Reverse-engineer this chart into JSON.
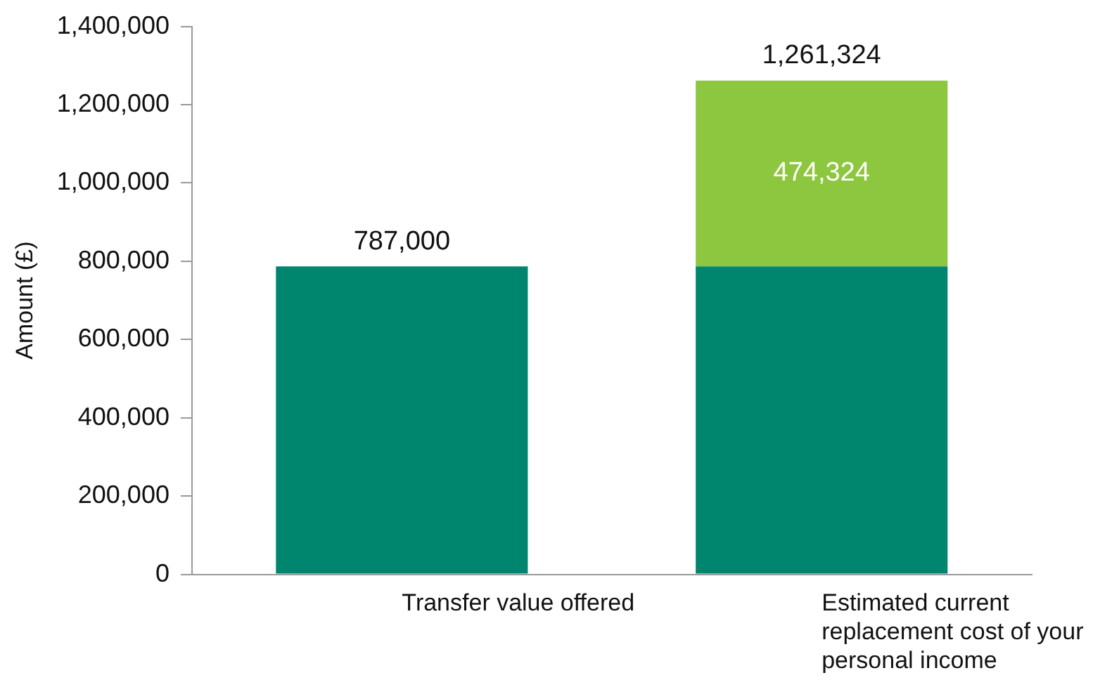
{
  "chart_data": {
    "type": "bar",
    "stacked": true,
    "ylabel": "Amount (£)",
    "categories": [
      "Transfer value offered",
      "Estimated current replacement cost of your personal income"
    ],
    "series": [
      {
        "color": "#00856f",
        "values": [
          787000,
          787000
        ]
      },
      {
        "color": "#8dc63f",
        "values": [
          null,
          474324
        ],
        "value_labels": [
          null,
          "474,324"
        ]
      }
    ],
    "totals": [
      "787,000",
      "1,261,324"
    ],
    "ylim": [
      0,
      1400000
    ],
    "yticks": [
      {
        "value": 0,
        "label": "0"
      },
      {
        "value": 200000,
        "label": "200,000"
      },
      {
        "value": 400000,
        "label": "400,000"
      },
      {
        "value": 600000,
        "label": "600,000"
      },
      {
        "value": 800000,
        "label": "800,000"
      },
      {
        "value": 1000000,
        "label": "1,000,000"
      },
      {
        "value": 1200000,
        "label": "1,200,000"
      },
      {
        "value": 1400000,
        "label": "1,400,000"
      }
    ],
    "grid": false,
    "legend": false
  }
}
